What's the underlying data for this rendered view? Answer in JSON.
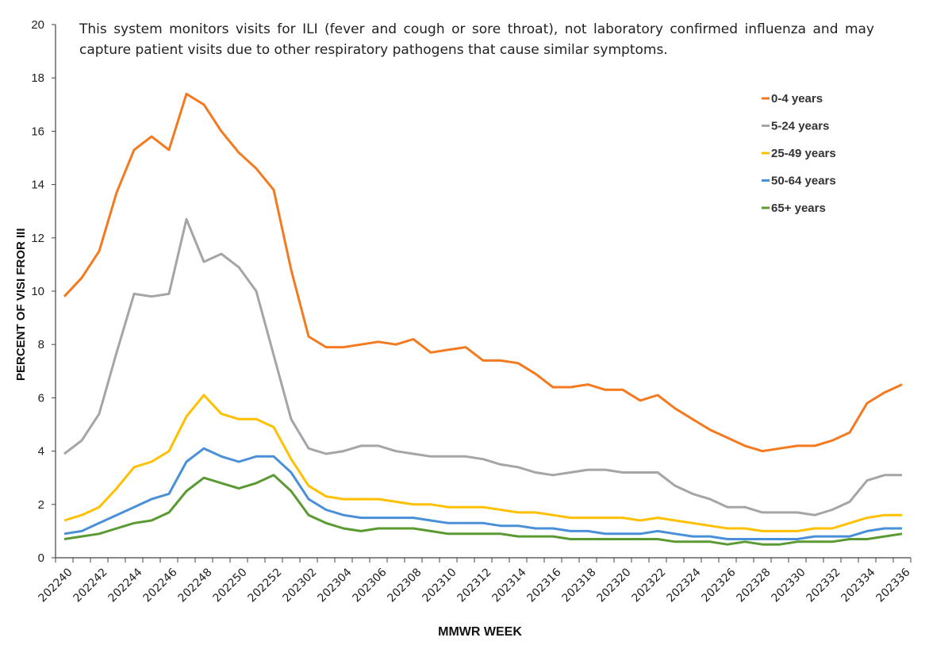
{
  "chart_data": {
    "type": "line",
    "title": "",
    "note": "This system monitors visits for ILI (fever and cough or sore throat), not laboratory confirmed influenza and may capture patient visits due to other respiratory pathogens that cause similar symptoms.",
    "xlabel": "MMWR WEEK",
    "ylabel": "PERCENT OF VISI FROR III",
    "ylim": [
      0,
      20
    ],
    "yticks": [
      0,
      2,
      4,
      6,
      8,
      10,
      12,
      14,
      16,
      18,
      20
    ],
    "grid": false,
    "legend_position": "top-right",
    "x": [
      "202240",
      "202241",
      "202242",
      "202243",
      "202244",
      "202245",
      "202246",
      "202247",
      "202248",
      "202249",
      "202250",
      "202251",
      "202252",
      "202301",
      "202302",
      "202303",
      "202304",
      "202305",
      "202306",
      "202307",
      "202308",
      "202309",
      "202310",
      "202311",
      "202312",
      "202313",
      "202314",
      "202315",
      "202316",
      "202317",
      "202318",
      "202319",
      "202320",
      "202321",
      "202322",
      "202323",
      "202324",
      "202325",
      "202326",
      "202327",
      "202328",
      "202329",
      "202330",
      "202331",
      "202332",
      "202333",
      "202334",
      "202335",
      "202336"
    ],
    "xtick_labels": [
      "202240",
      "202242",
      "202244",
      "202246",
      "202248",
      "202250",
      "202252",
      "202302",
      "202304",
      "202306",
      "202308",
      "202310",
      "202312",
      "202314",
      "202316",
      "202318",
      "202320",
      "202322",
      "202324",
      "202326",
      "202328",
      "202330",
      "202332",
      "202334",
      "202336"
    ],
    "series": [
      {
        "name": "0-4 years",
        "color": "#F47A20",
        "values": [
          9.8,
          10.5,
          11.5,
          13.7,
          15.3,
          15.8,
          15.3,
          17.4,
          17.0,
          16.0,
          15.2,
          14.6,
          13.8,
          10.8,
          8.3,
          7.9,
          7.9,
          8.0,
          8.1,
          8.0,
          8.2,
          7.7,
          7.8,
          7.9,
          7.4,
          7.4,
          7.3,
          6.9,
          6.4,
          6.4,
          6.5,
          6.3,
          6.3,
          5.9,
          6.1,
          5.6,
          5.2,
          4.8,
          4.5,
          4.2,
          4.0,
          4.1,
          4.2,
          4.2,
          4.4,
          4.7,
          5.8,
          6.2,
          6.5
        ]
      },
      {
        "name": "5-24 years",
        "color": "#A5A5A5",
        "values": [
          3.9,
          4.4,
          5.4,
          7.7,
          9.9,
          9.8,
          9.9,
          12.7,
          11.1,
          11.4,
          10.9,
          10.0,
          7.6,
          5.2,
          4.1,
          3.9,
          4.0,
          4.2,
          4.2,
          4.0,
          3.9,
          3.8,
          3.8,
          3.8,
          3.7,
          3.5,
          3.4,
          3.2,
          3.1,
          3.2,
          3.3,
          3.3,
          3.2,
          3.2,
          3.2,
          2.7,
          2.4,
          2.2,
          1.9,
          1.9,
          1.7,
          1.7,
          1.7,
          1.6,
          1.8,
          2.1,
          2.9,
          3.1,
          3.1
        ]
      },
      {
        "name": "25-49 years",
        "color": "#FFC000",
        "values": [
          1.4,
          1.6,
          1.9,
          2.6,
          3.4,
          3.6,
          4.0,
          5.3,
          6.1,
          5.4,
          5.2,
          5.2,
          4.9,
          3.7,
          2.7,
          2.3,
          2.2,
          2.2,
          2.2,
          2.1,
          2.0,
          2.0,
          1.9,
          1.9,
          1.9,
          1.8,
          1.7,
          1.7,
          1.6,
          1.5,
          1.5,
          1.5,
          1.5,
          1.4,
          1.5,
          1.4,
          1.3,
          1.2,
          1.1,
          1.1,
          1.0,
          1.0,
          1.0,
          1.1,
          1.1,
          1.3,
          1.5,
          1.6,
          1.6
        ]
      },
      {
        "name": "50-64 years",
        "color": "#4A90D9",
        "values": [
          0.9,
          1.0,
          1.3,
          1.6,
          1.9,
          2.2,
          2.4,
          3.6,
          4.1,
          3.8,
          3.6,
          3.8,
          3.8,
          3.2,
          2.2,
          1.8,
          1.6,
          1.5,
          1.5,
          1.5,
          1.5,
          1.4,
          1.3,
          1.3,
          1.3,
          1.2,
          1.2,
          1.1,
          1.1,
          1.0,
          1.0,
          0.9,
          0.9,
          0.9,
          1.0,
          0.9,
          0.8,
          0.8,
          0.7,
          0.7,
          0.7,
          0.7,
          0.7,
          0.8,
          0.8,
          0.8,
          1.0,
          1.1,
          1.1
        ]
      },
      {
        "name": "65+ years",
        "color": "#5B9A32",
        "values": [
          0.7,
          0.8,
          0.9,
          1.1,
          1.3,
          1.4,
          1.7,
          2.5,
          3.0,
          2.8,
          2.6,
          2.8,
          3.1,
          2.5,
          1.6,
          1.3,
          1.1,
          1.0,
          1.1,
          1.1,
          1.1,
          1.0,
          0.9,
          0.9,
          0.9,
          0.9,
          0.8,
          0.8,
          0.8,
          0.7,
          0.7,
          0.7,
          0.7,
          0.7,
          0.7,
          0.6,
          0.6,
          0.6,
          0.5,
          0.6,
          0.5,
          0.5,
          0.6,
          0.6,
          0.6,
          0.7,
          0.7,
          0.8,
          0.9
        ]
      }
    ]
  }
}
